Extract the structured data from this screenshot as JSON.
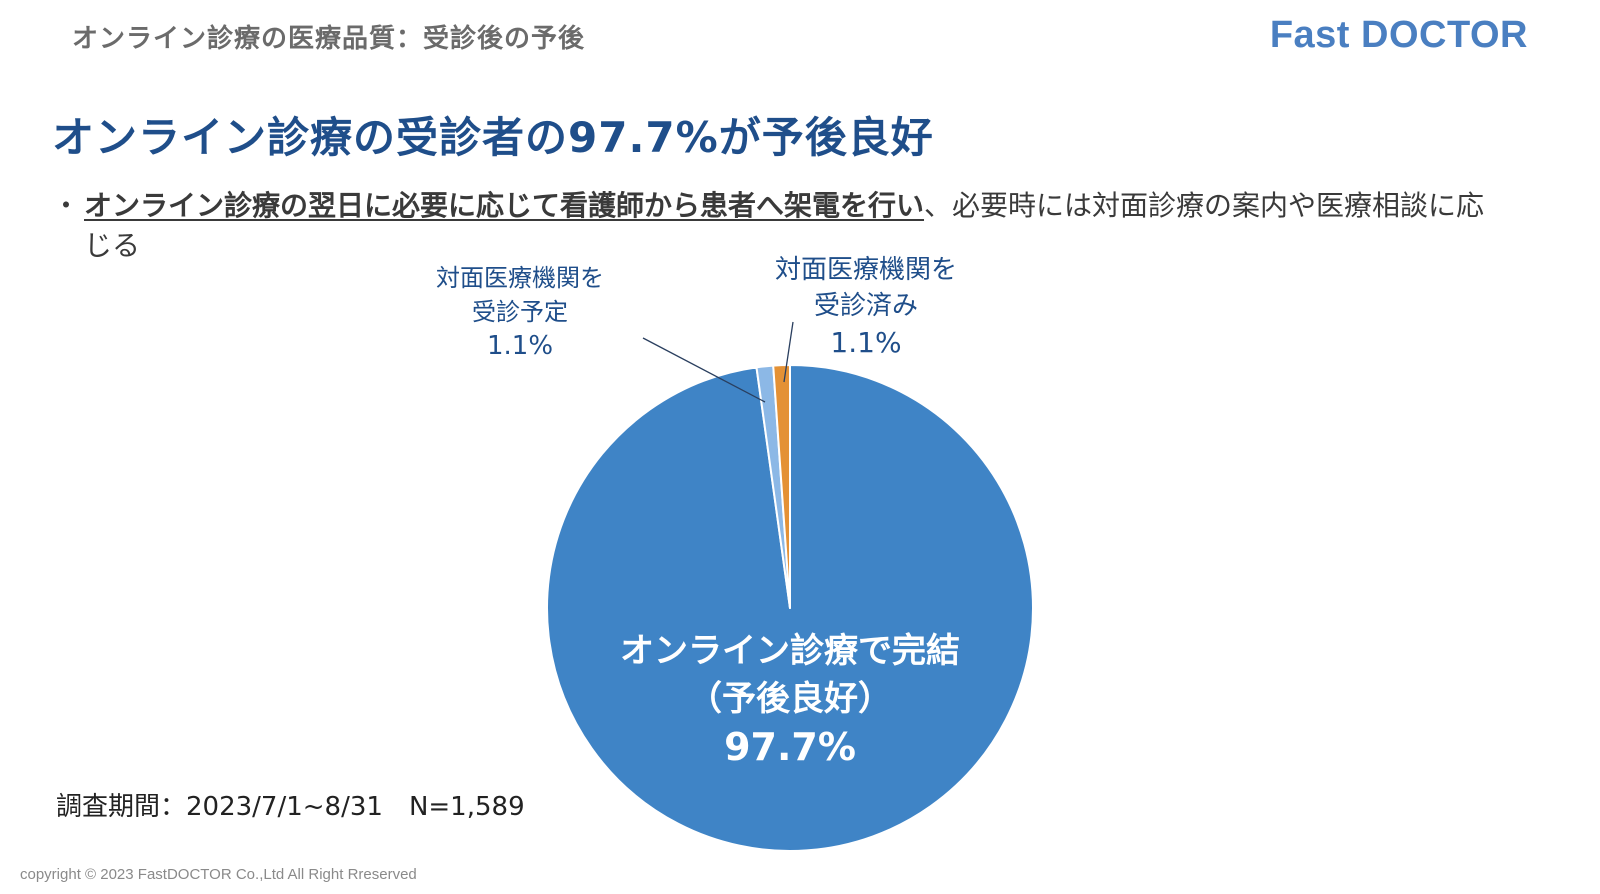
{
  "header": {
    "title": "オンライン診療の医療品質：受診後の予後",
    "brand": "Fast DOCTOR"
  },
  "headline": "オンライン診療の受診者の97.7%が予後良好",
  "bullet": {
    "marker": "・",
    "emphasis": "オンライン診療の翌日に必要に応じて看護師から患者へ架電を行い",
    "rest": "、必要時には対面診療の案内や医療相談に応じる"
  },
  "colors": {
    "primary_blue": "#3f84c6",
    "light_blue": "#8cb8e6",
    "orange": "#e49135",
    "headline": "#1f4e8a",
    "label_text": "#1f4e8a"
  },
  "chart_data": {
    "type": "pie",
    "title": "",
    "slices": [
      {
        "key": "completed",
        "label_lines": [
          "オンライン診療で完結",
          "（予後良好）"
        ],
        "value_label": "97.7%",
        "value": 97.7,
        "color": "#3f84c6"
      },
      {
        "key": "scheduled",
        "label_lines": [
          "対面医療機関を",
          "受診予定"
        ],
        "value_label": "1.1%",
        "value": 1.1,
        "color": "#8cb8e6"
      },
      {
        "key": "visited",
        "label_lines": [
          "対面医療機関を",
          "受診済み"
        ],
        "value_label": "1.1%",
        "value": 1.1,
        "color": "#e49135"
      }
    ]
  },
  "footer": {
    "survey_period": "調査期間：2023/7/1~8/31　N=1,589",
    "copyright": "copyright  © 2023 FastDOCTOR Co.,Ltd All Right Rreserved"
  }
}
